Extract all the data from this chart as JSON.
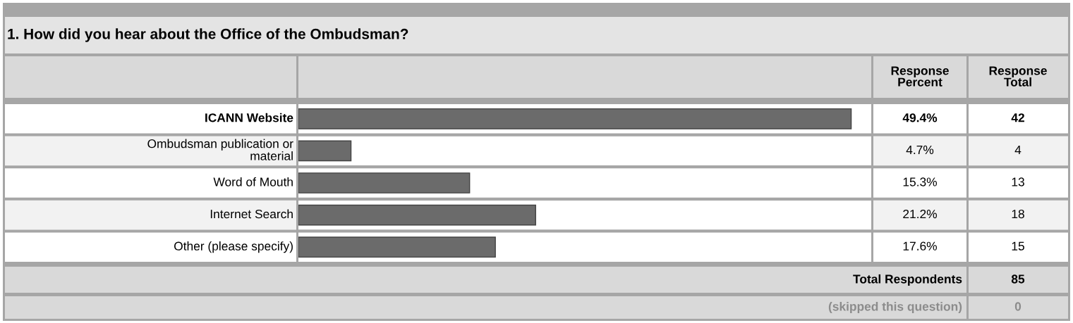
{
  "chart_data": {
    "type": "bar",
    "orientation": "horizontal",
    "title": "1. How did you hear about the Office of the Ombudsman?",
    "categories": [
      "ICANN Website",
      "Ombudsman publication or material",
      "Word of Mouth",
      "Internet Search",
      "Other (please specify)"
    ],
    "values": [
      49.4,
      4.7,
      15.3,
      21.2,
      17.6
    ],
    "value_labels": [
      "49.4%",
      "4.7%",
      "15.3%",
      "21.2%",
      "17.6%"
    ],
    "color": "#6b6b6b",
    "annotations": [
      "Response Percent",
      "Response Total",
      "42",
      "4",
      "13",
      "18",
      "15",
      "Total Respondents",
      "85",
      "(skipped this question)",
      "0"
    ]
  }
}
